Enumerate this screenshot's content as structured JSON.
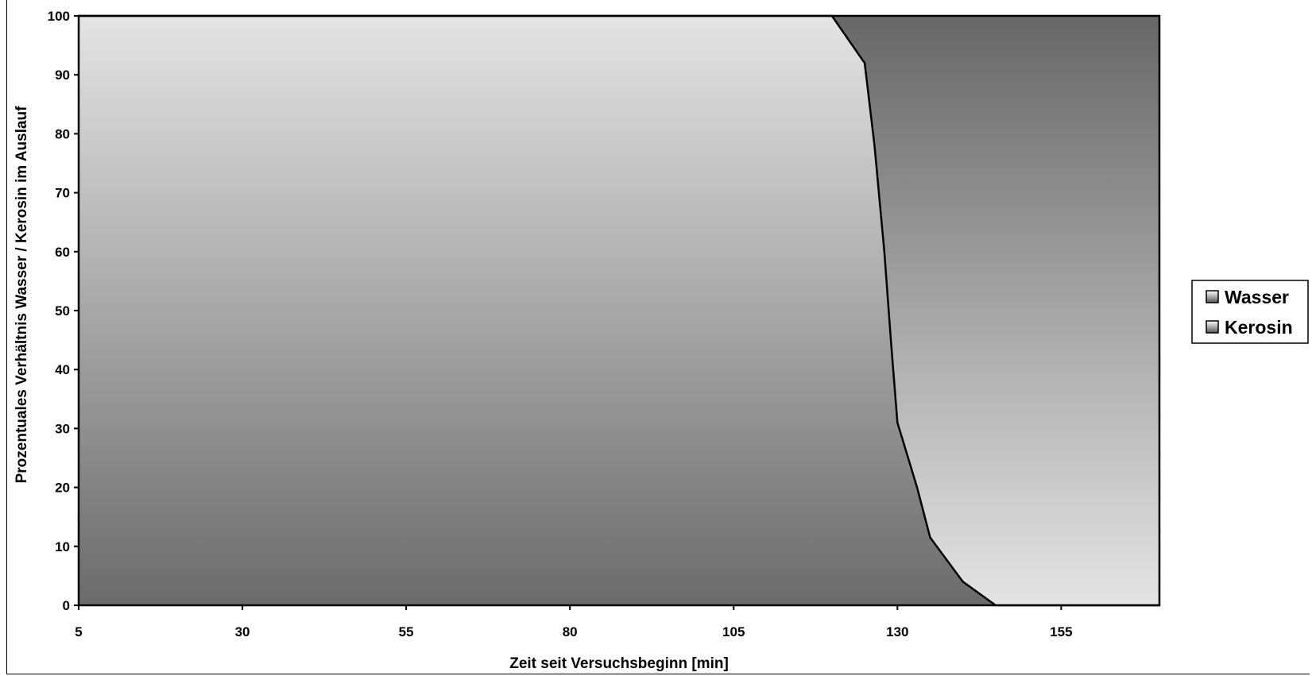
{
  "chart_data": {
    "type": "area",
    "stacked": true,
    "percent": true,
    "title": "",
    "xlabel": "Zeit seit Versuchsbeginn [min]",
    "ylabel": "Prozentuales Verhältnis Wasser / Kerosin im Auslauf",
    "xlim": [
      5,
      170
    ],
    "ylim": [
      0,
      100
    ],
    "x_ticks": [
      5,
      30,
      55,
      80,
      105,
      130,
      155
    ],
    "y_ticks": [
      0,
      10,
      20,
      30,
      40,
      50,
      60,
      70,
      80,
      90,
      100
    ],
    "grid": false,
    "legend_position": "right",
    "x": [
      5,
      120,
      125,
      126.5,
      128,
      129,
      130,
      133,
      135,
      140,
      145,
      170
    ],
    "series": [
      {
        "name": "Kerosin",
        "values": [
          100,
          100,
          92,
          78,
          60,
          45,
          31,
          20,
          11.5,
          4,
          0,
          0
        ],
        "color_light": "#e4e4e4",
        "color_dark": "#6b6b6b",
        "gradient": "top-light"
      },
      {
        "name": "Wasser",
        "values": [
          0,
          0,
          8,
          22,
          40,
          55,
          69,
          80,
          88.5,
          96,
          100,
          100
        ],
        "color_light": "#e4e4e4",
        "color_dark": "#676767",
        "gradient": "top-dark"
      }
    ]
  }
}
